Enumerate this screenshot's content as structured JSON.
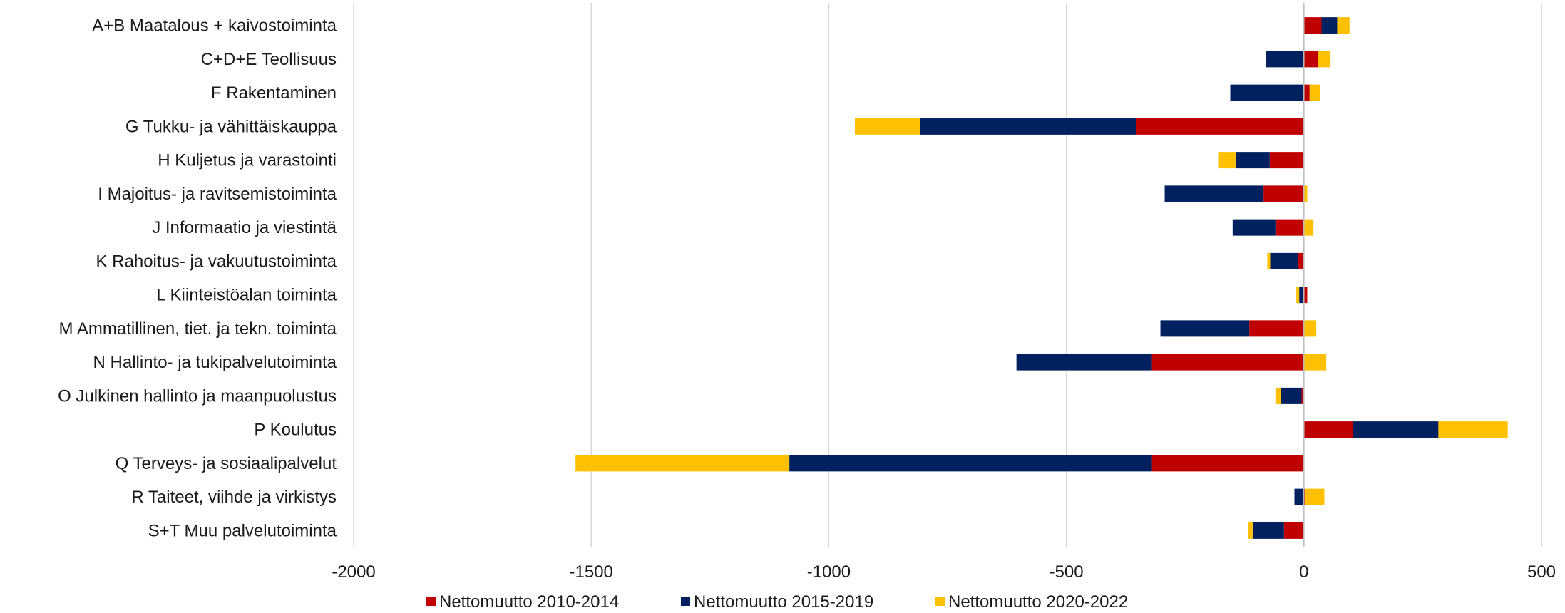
{
  "chart_data": {
    "type": "bar",
    "orientation": "horizontal",
    "stacked": true,
    "title": "",
    "xlabel": "",
    "ylabel": "",
    "xlim": [
      -2000,
      500
    ],
    "xticks": [
      -2000,
      -1500,
      -1000,
      -500,
      0,
      500
    ],
    "grid": true,
    "legend_position": "bottom",
    "categories": [
      "A+B Maatalous + kaivostoiminta",
      "C+D+E Teollisuus",
      "F Rakentaminen",
      "G Tukku- ja vähittäiskauppa",
      "H Kuljetus ja varastointi",
      "I Majoitus- ja ravitsemistoiminta",
      "J Informaatio ja viestintä",
      "K Rahoitus- ja vakuutustoiminta",
      "L Kiinteistöalan toiminta",
      "M Ammatillinen, tiet. ja tekn. toiminta",
      "N Hallinto- ja tukipalvelutoiminta",
      "O Julkinen hallinto ja maanpuolustus",
      "P Koulutus",
      "Q Terveys- ja sosiaalipalvelut",
      "R Taiteet, viihde ja virkistys",
      "S+T Muu palvelutoiminta"
    ],
    "series": [
      {
        "name": "Nettomuutto 2010-2014",
        "color": "#C00000",
        "values": [
          37,
          30,
          12,
          -353,
          -72,
          -85,
          -60,
          -13,
          7,
          -115,
          -320,
          -5,
          103,
          -320,
          3,
          -42
        ]
      },
      {
        "name": "Nettomuutto 2015-2019",
        "color": "#002060",
        "values": [
          33,
          -80,
          -155,
          -455,
          -72,
          -208,
          -90,
          -58,
          -10,
          -187,
          -285,
          -43,
          180,
          -763,
          -20,
          -66
        ]
      },
      {
        "name": "Nettomuutto 2020-2022",
        "color": "#FFC000",
        "values": [
          26,
          26,
          22,
          -137,
          -35,
          7,
          20,
          -6,
          -6,
          26,
          47,
          -12,
          146,
          -450,
          40,
          -10
        ]
      }
    ]
  }
}
